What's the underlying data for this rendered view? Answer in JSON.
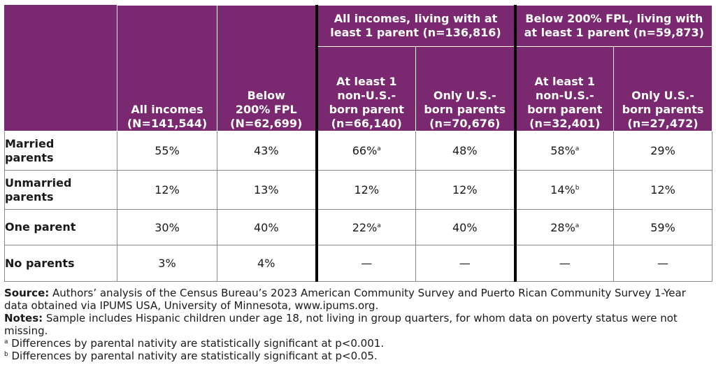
{
  "table": {
    "group_headers": [
      "All incomes, living with at least 1 parent (n=136,816)",
      "Below 200% FPL, living with at least 1 parent (n=59,873)"
    ],
    "columns": [
      {
        "line1": "All incomes",
        "line2": "(N=141,544)"
      },
      {
        "line1": "Below",
        "line2": "200% FPL",
        "line3": "(N=62,699)"
      },
      {
        "line1": "At least 1",
        "line2": "non-U.S.-",
        "line3": "born parent",
        "line4": "(n=66,140)"
      },
      {
        "line1": "Only U.S.-",
        "line2": "born parents",
        "line3": "(n=70,676)"
      },
      {
        "line1": "At least 1",
        "line2": "non-U.S.-",
        "line3": "born parent",
        "line4": "(n=32,401)"
      },
      {
        "line1": "Only U.S.-",
        "line2": "born parents",
        "line3": "(n=27,472)"
      }
    ],
    "rows": [
      {
        "label1": "Married",
        "label2": "parents",
        "cells": [
          {
            "v": "55%"
          },
          {
            "v": "43%"
          },
          {
            "v": "66%",
            "sup": "a"
          },
          {
            "v": "48%"
          },
          {
            "v": "58%",
            "sup": "a"
          },
          {
            "v": "29%"
          }
        ]
      },
      {
        "label1": "Unmarried",
        "label2": "parents",
        "cells": [
          {
            "v": "12%"
          },
          {
            "v": "13%"
          },
          {
            "v": "12%"
          },
          {
            "v": "12%"
          },
          {
            "v": "14%",
            "sup": "b"
          },
          {
            "v": "12%"
          }
        ]
      },
      {
        "label1": "One parent",
        "cells": [
          {
            "v": "30%"
          },
          {
            "v": "40%"
          },
          {
            "v": "22%",
            "sup": "a"
          },
          {
            "v": "40%"
          },
          {
            "v": "28%",
            "sup": "a"
          },
          {
            "v": "59%"
          }
        ]
      },
      {
        "label1": "No parents",
        "cells": [
          {
            "v": "3%"
          },
          {
            "v": "4%"
          },
          {
            "v": "—"
          },
          {
            "v": "—"
          },
          {
            "v": "—"
          },
          {
            "v": "—"
          }
        ]
      }
    ]
  },
  "colors": {
    "header_bg": "#7a2870",
    "header_text": "#ffffff"
  },
  "notes": {
    "source_label": "Source:",
    "source_text": " Authors’ analysis of the Census Bureau’s 2023 American Community Survey and Puerto Rican Community Survey 1-Year data obtained via IPUMS USA, University of Minnesota, www.ipums.org.",
    "notes_label": "Notes:",
    "notes_text": " Sample includes Hispanic children under age 18, not living in group quarters, for whom data on poverty status were not missing.",
    "fn_a_mark": "a",
    "fn_a_text": " Differences by parental nativity are statistically significant at p<0.001.",
    "fn_b_mark": "b",
    "fn_b_text": " Differences by parental nativity are statistically significant at p<0.05."
  }
}
